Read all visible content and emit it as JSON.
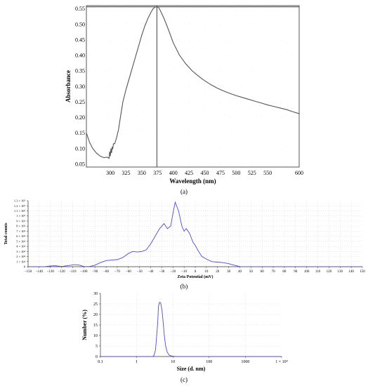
{
  "chart_data": [
    {
      "type": "line",
      "panel_label": "(a)",
      "xlabel": "Wavelength (nm)",
      "ylabel": "Absorbance",
      "xlim": [
        262,
        600
      ],
      "ylim": [
        0.04,
        0.56
      ],
      "xticks": [
        "300",
        "325",
        "350",
        "375",
        "400",
        "425",
        "450",
        "475",
        "500",
        "525",
        "550",
        "600"
      ],
      "xtick_values": [
        300,
        325,
        350,
        375,
        400,
        425,
        450,
        475,
        500,
        525,
        550,
        600
      ],
      "yticks": [
        "0.05",
        "0.10",
        "0.15",
        "0.20",
        "0.25",
        "0.30",
        "0.35",
        "0.40",
        "0.45",
        "0.50",
        "0.55"
      ],
      "ytick_values": [
        0.05,
        0.1,
        0.15,
        0.2,
        0.25,
        0.3,
        0.35,
        0.4,
        0.45,
        0.5,
        0.55
      ],
      "grid": "dotted",
      "cursor_x": 374,
      "cursor_y": 0.556,
      "series": [
        {
          "x": [
            262,
            267,
            272,
            278,
            284,
            290,
            295,
            298,
            299,
            300,
            301,
            302,
            303,
            304,
            305,
            307,
            310,
            313,
            316,
            320,
            325,
            330,
            335,
            340,
            345,
            350,
            355,
            360,
            365,
            368,
            371,
            374,
            377,
            380,
            385,
            390,
            395,
            400,
            410,
            420,
            430,
            440,
            450,
            460,
            470,
            480,
            490,
            500,
            510,
            520,
            530,
            540,
            550,
            560,
            570,
            580,
            590,
            600
          ],
          "y": [
            0.15,
            0.12,
            0.1,
            0.085,
            0.075,
            0.07,
            0.072,
            0.068,
            0.09,
            0.075,
            0.1,
            0.085,
            0.105,
            0.1,
            0.115,
            0.115,
            0.135,
            0.16,
            0.2,
            0.25,
            0.29,
            0.325,
            0.36,
            0.395,
            0.43,
            0.465,
            0.495,
            0.52,
            0.54,
            0.55,
            0.555,
            0.557,
            0.553,
            0.542,
            0.52,
            0.495,
            0.468,
            0.44,
            0.4,
            0.372,
            0.35,
            0.333,
            0.318,
            0.305,
            0.294,
            0.285,
            0.277,
            0.27,
            0.264,
            0.258,
            0.252,
            0.246,
            0.24,
            0.235,
            0.23,
            0.225,
            0.218,
            0.212
          ],
          "color": "#555555"
        }
      ]
    },
    {
      "type": "line",
      "panel_label": "(b)",
      "xlabel": "Zeta Potential (mV)",
      "ylabel": "Total counts",
      "xlim": [
        -150,
        150
      ],
      "ylim": [
        0,
        130000
      ],
      "xticks": [
        "−150",
        "−140",
        "−130",
        "−120",
        "−110",
        "−100",
        "−90",
        "−80",
        "−70",
        "−60",
        "−50",
        "−40",
        "−30",
        "−20",
        "−10",
        "0",
        "10",
        "20",
        "30",
        "40",
        "50",
        "60",
        "70",
        "80",
        "90",
        "100",
        "110",
        "120",
        "130",
        "140",
        "150"
      ],
      "xtick_values": [
        -150,
        -140,
        -130,
        -120,
        -110,
        -100,
        -90,
        -80,
        -70,
        -60,
        -50,
        -40,
        -30,
        -20,
        -10,
        0,
        10,
        20,
        30,
        40,
        50,
        60,
        70,
        80,
        90,
        100,
        110,
        120,
        130,
        140,
        150
      ],
      "yticks": [
        "0",
        "1 × 10⁴",
        "2 × 10⁴",
        "3 × 10⁴",
        "4 × 10⁴",
        "5 × 10⁴",
        "6 × 10⁴",
        "7 × 10⁴",
        "8 × 10⁴",
        "9 × 10⁴",
        "1 × 10⁵",
        "1.1 × 10⁵",
        "1.2 × 10⁵",
        "1.3 × 10⁵"
      ],
      "ytick_values": [
        0,
        10000,
        20000,
        30000,
        40000,
        50000,
        60000,
        70000,
        80000,
        90000,
        100000,
        110000,
        120000,
        130000
      ],
      "grid": "dotted",
      "series": [
        {
          "x": [
            -150,
            -135,
            -130,
            -126,
            -120,
            -113,
            -108,
            -104,
            -100,
            -95,
            -90,
            -85,
            -80,
            -75,
            -70,
            -65,
            -60,
            -56,
            -52,
            -48,
            -44,
            -40,
            -36,
            -32,
            -28,
            -25,
            -22,
            -20,
            -18,
            -15,
            -12,
            -10,
            -8,
            -5,
            -2,
            0,
            3,
            6,
            10,
            15,
            20,
            25,
            30,
            35,
            40,
            60,
            100,
            150
          ],
          "y": [
            0,
            0,
            1500,
            2000,
            500,
            2500,
            4000,
            3000,
            500,
            200,
            3000,
            8000,
            12000,
            13000,
            14000,
            18000,
            26000,
            30000,
            29000,
            30000,
            33000,
            45000,
            60000,
            75000,
            85000,
            75000,
            80000,
            105000,
            127000,
            110000,
            80000,
            70000,
            75000,
            65000,
            48000,
            42000,
            30000,
            20000,
            15000,
            10000,
            9000,
            8000,
            6000,
            3000,
            200,
            0,
            0,
            0
          ],
          "color": "#4a4adf"
        }
      ]
    },
    {
      "type": "line",
      "panel_label": "(c)",
      "xlabel": "Size (d. nm)",
      "ylabel": "Number (%)",
      "xscale": "log",
      "xlim": [
        0.1,
        10000
      ],
      "ylim": [
        0,
        30
      ],
      "xticks": [
        "0.1",
        "1",
        "10",
        "100",
        "1000",
        "1 × 10⁴"
      ],
      "xtick_values": [
        0.1,
        1,
        10,
        100,
        1000,
        10000
      ],
      "yticks": [
        "0",
        "5",
        "10",
        "15",
        "20",
        "25",
        "30"
      ],
      "ytick_values": [
        0,
        5,
        10,
        15,
        20,
        25,
        30
      ],
      "grid": "dotted",
      "series": [
        {
          "x": [
            0.1,
            2.8,
            3.0,
            3.3,
            3.5,
            3.8,
            4.0,
            4.3,
            4.6,
            5.0,
            5.4,
            5.8,
            6.3,
            7.0,
            8.0,
            9.5,
            12,
            20,
            50,
            10000
          ],
          "y": [
            0,
            0,
            0.5,
            3,
            8,
            16,
            24,
            25.8,
            25.5,
            22,
            16,
            10,
            5,
            2,
            0.6,
            0.2,
            0,
            0,
            0,
            0
          ],
          "color": "#4a4adf"
        }
      ]
    }
  ]
}
